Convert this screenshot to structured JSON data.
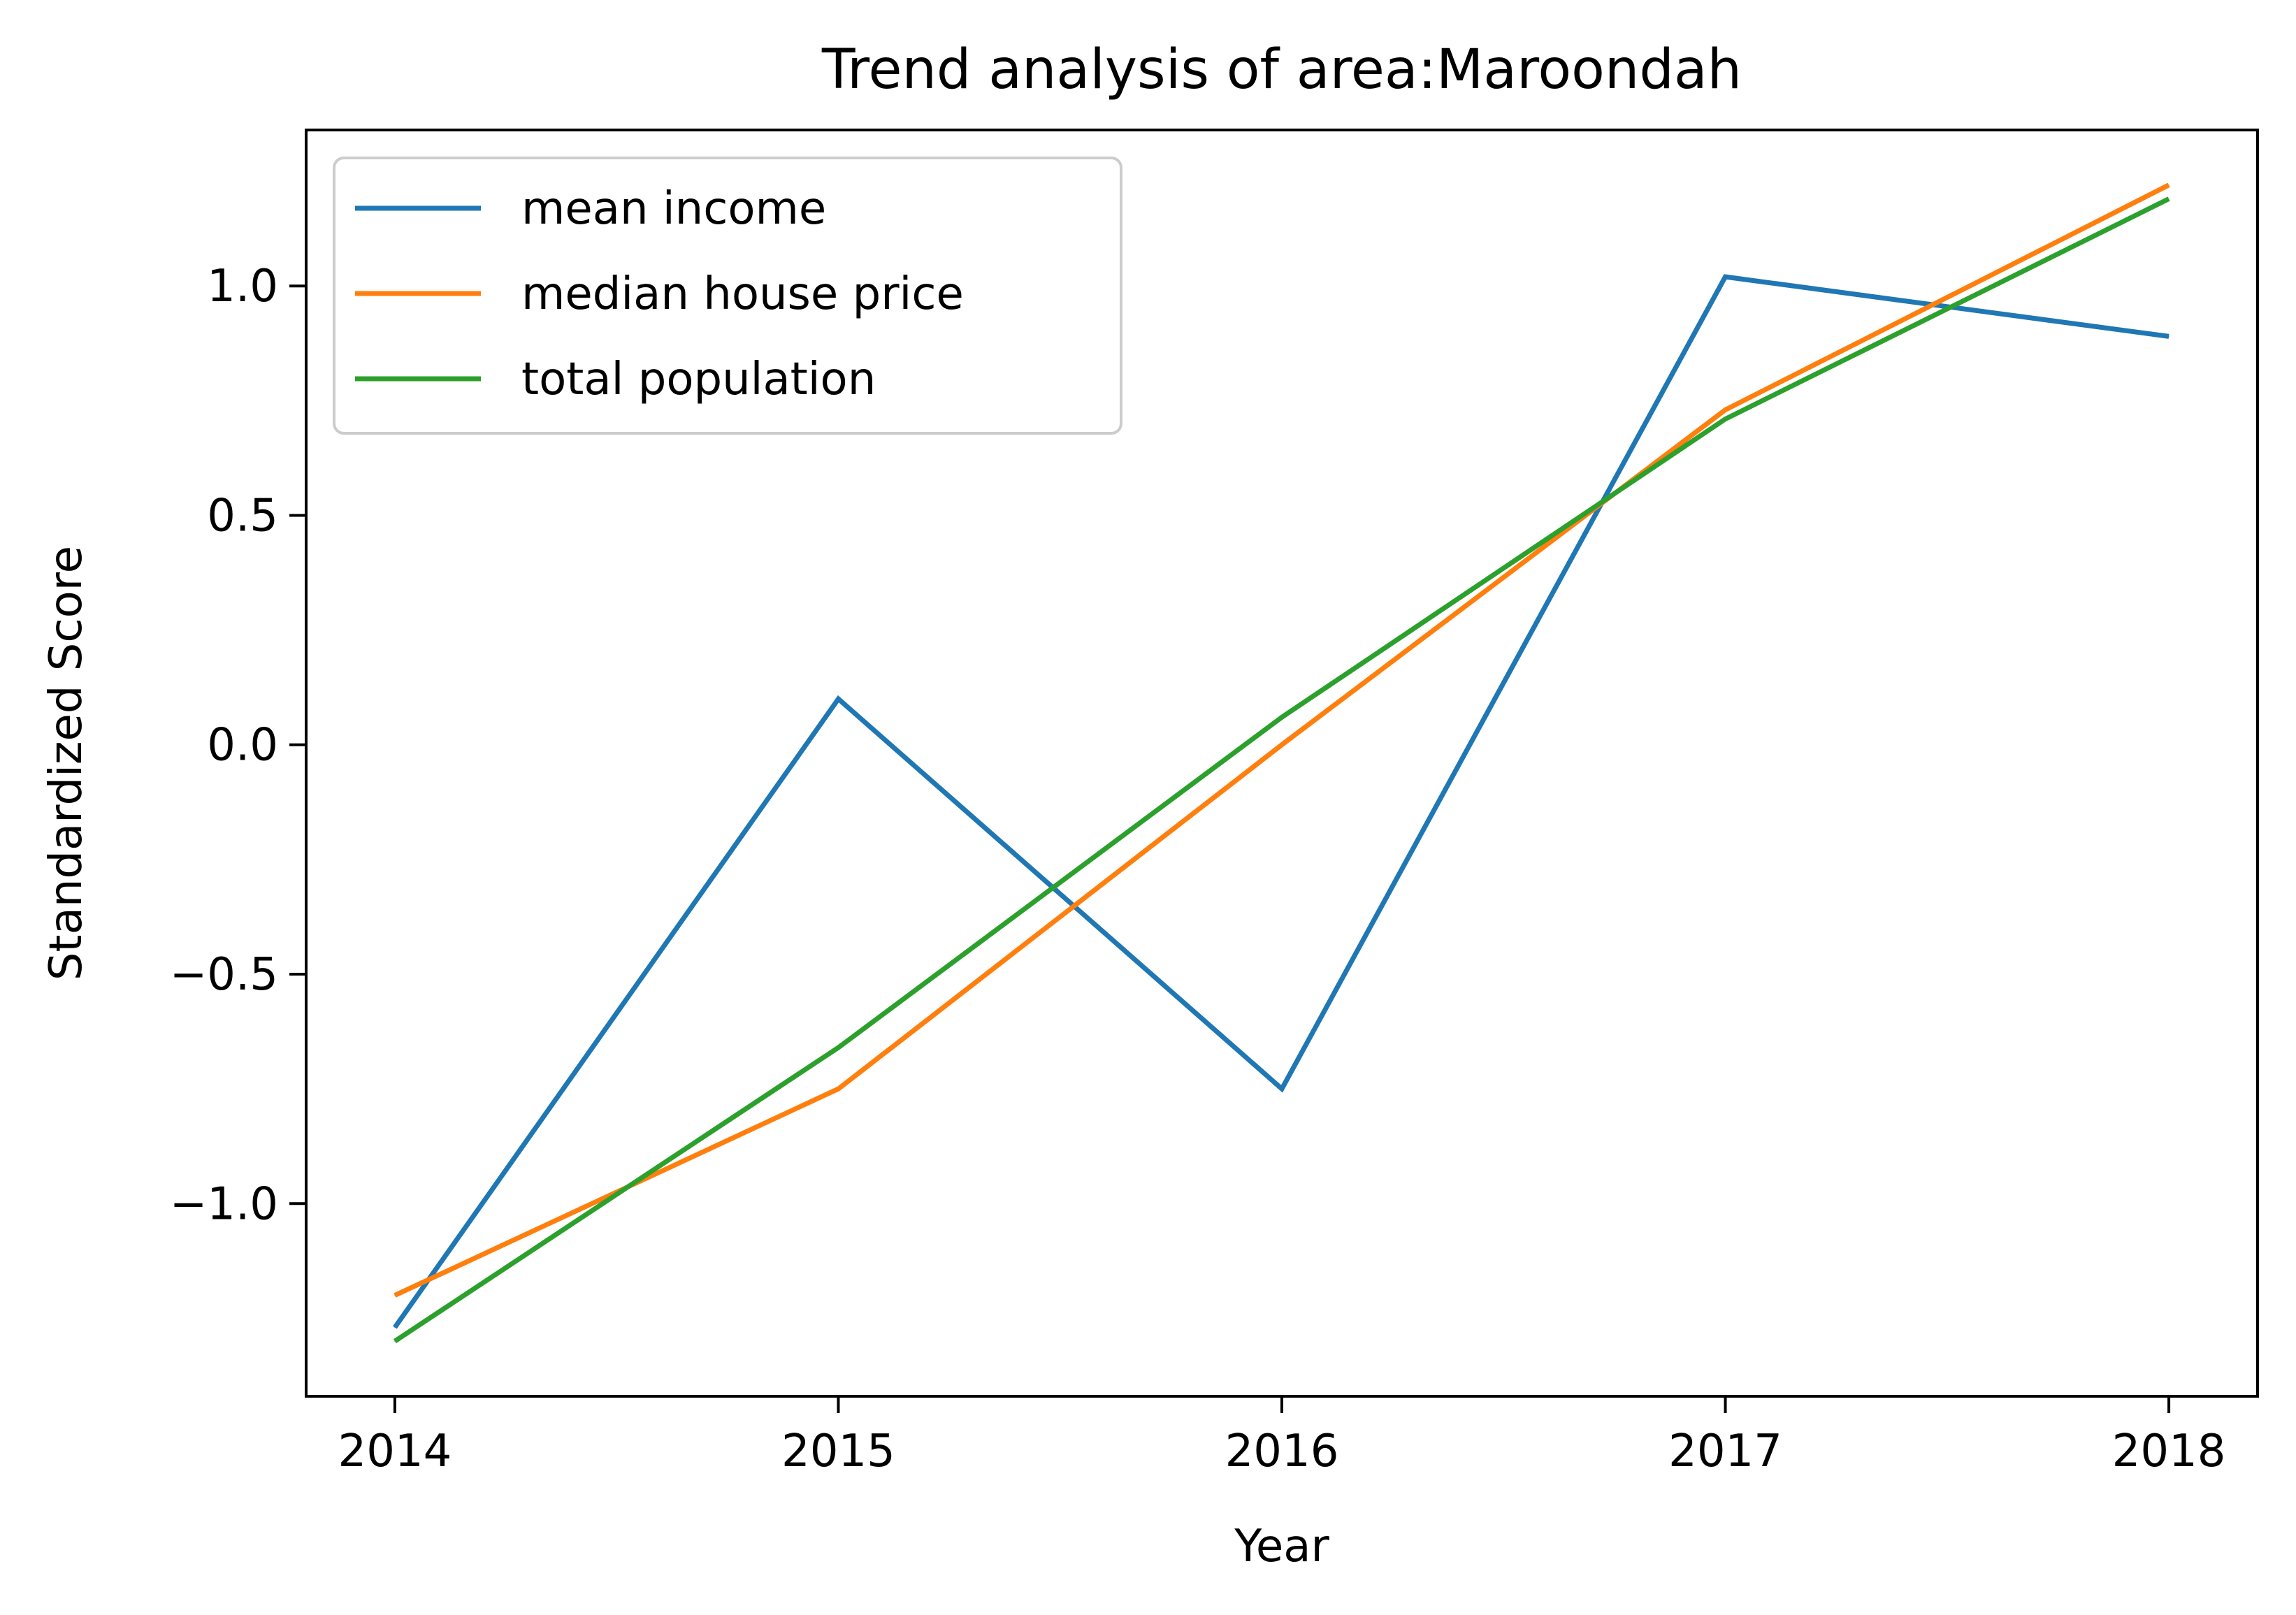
{
  "chart_data": {
    "type": "line",
    "title": "Trend analysis of area:Maroondah",
    "xlabel": "Year",
    "ylabel": "Standardized Score",
    "x": [
      2014,
      2015,
      2016,
      2017,
      2018
    ],
    "x_tick_labels": [
      "2014",
      "2015",
      "2016",
      "2017",
      "2018"
    ],
    "y_ticks": [
      -1.0,
      -0.5,
      0.0,
      0.5,
      1.0
    ],
    "y_tick_labels": [
      "−1.0",
      "−0.5",
      "0.0",
      "0.5",
      "1.0"
    ],
    "xlim": [
      2013.8,
      2018.2
    ],
    "ylim": [
      -1.42,
      1.34
    ],
    "grid": false,
    "legend_position": "upper-left",
    "series": [
      {
        "name": "mean income",
        "color": "#1f77b4",
        "values": [
          -1.27,
          0.1,
          -0.75,
          1.02,
          0.89
        ]
      },
      {
        "name": "median house price",
        "color": "#ff7f0e",
        "values": [
          -1.2,
          -0.75,
          0.0,
          0.73,
          1.22
        ]
      },
      {
        "name": "total population",
        "color": "#2ca02c",
        "values": [
          -1.3,
          -0.66,
          0.06,
          0.71,
          1.19
        ]
      }
    ]
  }
}
